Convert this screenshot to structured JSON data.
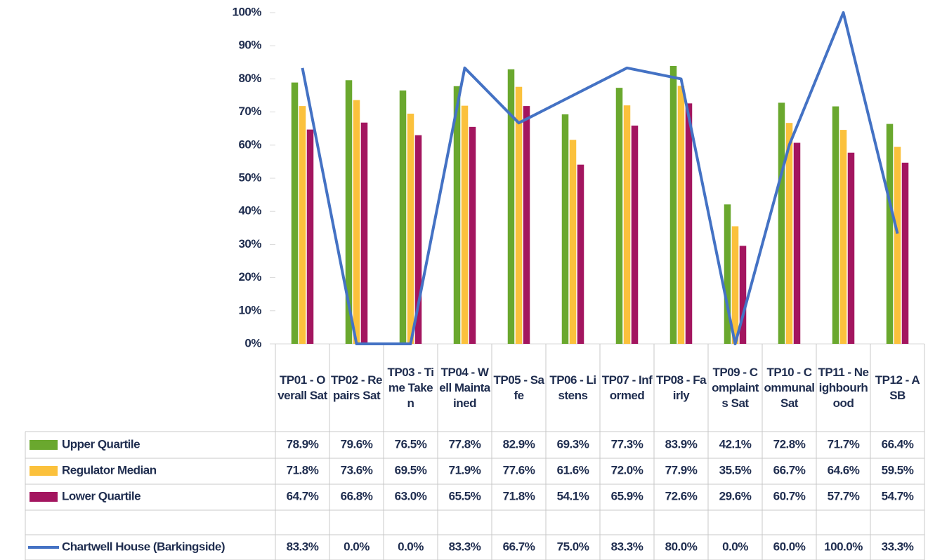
{
  "chart_data": {
    "type": "bar",
    "categories": [
      "TP01 - Overall Sat",
      "TP02 - Repairs Sat",
      "TP03 - Time Taken",
      "TP04 - Well Maintained",
      "TP05 - Safe",
      "TP06 - Listens",
      "TP07 - Informed",
      "TP08 - Fairly",
      "TP09 - Complaints Sat",
      "TP10 - Communal Sat",
      "TP11 - Neighbourhood",
      "TP12 - ASB"
    ],
    "series": [
      {
        "name": "Upper Quartile",
        "color": "#6aa82e",
        "values": [
          78.9,
          79.6,
          76.5,
          77.8,
          82.9,
          69.3,
          77.3,
          83.9,
          42.1,
          72.8,
          71.7,
          66.4
        ],
        "value_labels": [
          "78.9%",
          "79.6%",
          "76.5%",
          "77.8%",
          "82.9%",
          "69.3%",
          "77.3%",
          "83.9%",
          "42.1%",
          "72.8%",
          "71.7%",
          "66.4%"
        ]
      },
      {
        "name": "Regulator Median",
        "color": "#fbc13c",
        "values": [
          71.8,
          73.6,
          69.5,
          71.9,
          77.6,
          61.6,
          72.0,
          77.9,
          35.5,
          66.7,
          64.6,
          59.5
        ],
        "value_labels": [
          "71.8%",
          "73.6%",
          "69.5%",
          "71.9%",
          "77.6%",
          "61.6%",
          "72.0%",
          "77.9%",
          "35.5%",
          "66.7%",
          "64.6%",
          "59.5%"
        ]
      },
      {
        "name": "Lower Quartile",
        "color": "#a3155f",
        "values": [
          64.7,
          66.8,
          63.0,
          65.5,
          71.8,
          54.1,
          65.9,
          72.6,
          29.6,
          60.7,
          57.7,
          54.7
        ],
        "value_labels": [
          "64.7%",
          "66.8%",
          "63.0%",
          "65.5%",
          "71.8%",
          "54.1%",
          "65.9%",
          "72.6%",
          "29.6%",
          "60.7%",
          "57.7%",
          "54.7%"
        ]
      },
      {
        "name": "Chartwell House (Barkingside)",
        "type": "line",
        "color": "#4472c4",
        "values": [
          83.3,
          0.0,
          0.0,
          83.3,
          66.7,
          75.0,
          83.3,
          80.0,
          0.0,
          60.0,
          100.0,
          33.3
        ],
        "value_labels": [
          "83.3%",
          "0.0%",
          "0.0%",
          "83.3%",
          "66.7%",
          "75.0%",
          "83.3%",
          "80.0%",
          "0.0%",
          "60.0%",
          "100.0%",
          "33.3%"
        ]
      }
    ],
    "ylim": [
      0,
      100
    ],
    "yticks": [
      {
        "value": 0,
        "label": "0%"
      },
      {
        "value": 10,
        "label": "10%"
      },
      {
        "value": 20,
        "label": "20%"
      },
      {
        "value": 30,
        "label": "30%"
      },
      {
        "value": 40,
        "label": "40%"
      },
      {
        "value": 50,
        "label": "50%"
      },
      {
        "value": 60,
        "label": "60%"
      },
      {
        "value": 70,
        "label": "70%"
      },
      {
        "value": 80,
        "label": "80%"
      },
      {
        "value": 90,
        "label": "90%"
      },
      {
        "value": 100,
        "label": "100%"
      }
    ],
    "grid": false
  }
}
